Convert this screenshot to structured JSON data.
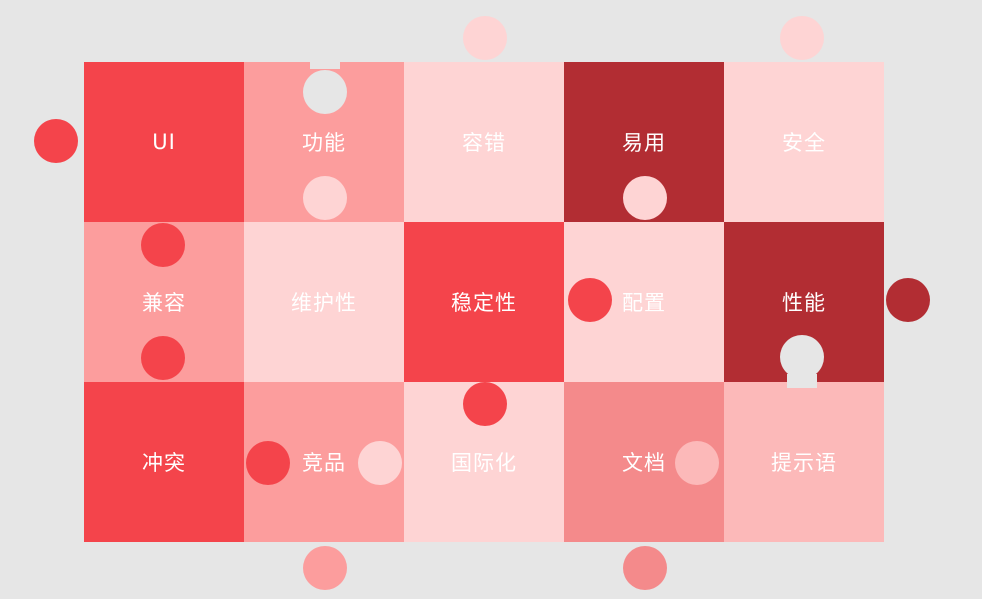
{
  "colors": {
    "background": "#e6e6e6",
    "red": "#f4444b",
    "dark_red": "#b22d33",
    "salmon": "#fc9d9d",
    "light_pink": "#fed4d4",
    "rose": "#f48a8b",
    "pink": "#fcb9b9"
  },
  "pieces": [
    {
      "id": "ui",
      "label": "UI",
      "row": 0,
      "col": 0,
      "color": "#f4444b"
    },
    {
      "id": "function",
      "label": "功能",
      "row": 0,
      "col": 1,
      "color": "#fc9d9d"
    },
    {
      "id": "fault-tolerance",
      "label": "容错",
      "row": 0,
      "col": 2,
      "color": "#fed4d4"
    },
    {
      "id": "usability",
      "label": "易用",
      "row": 0,
      "col": 3,
      "color": "#b22d33"
    },
    {
      "id": "security",
      "label": "安全",
      "row": 0,
      "col": 4,
      "color": "#fed4d4"
    },
    {
      "id": "compatibility",
      "label": "兼容",
      "row": 1,
      "col": 0,
      "color": "#fc9d9d"
    },
    {
      "id": "maintainability",
      "label": "维护性",
      "row": 1,
      "col": 1,
      "color": "#fed4d4"
    },
    {
      "id": "stability",
      "label": "稳定性",
      "row": 1,
      "col": 2,
      "color": "#f4444b"
    },
    {
      "id": "configuration",
      "label": "配置",
      "row": 1,
      "col": 3,
      "color": "#fed4d4"
    },
    {
      "id": "performance",
      "label": "性能",
      "row": 1,
      "col": 4,
      "color": "#b22d33"
    },
    {
      "id": "conflict",
      "label": "冲突",
      "row": 2,
      "col": 0,
      "color": "#f4444b"
    },
    {
      "id": "competitor",
      "label": "竞品",
      "row": 2,
      "col": 1,
      "color": "#fc9d9d"
    },
    {
      "id": "i18n",
      "label": "国际化",
      "row": 2,
      "col": 2,
      "color": "#fed4d4"
    },
    {
      "id": "documentation",
      "label": "文档",
      "row": 2,
      "col": 3,
      "color": "#f48a8b"
    },
    {
      "id": "hint-text",
      "label": "提示语",
      "row": 2,
      "col": 4,
      "color": "#fcb9b9"
    }
  ]
}
